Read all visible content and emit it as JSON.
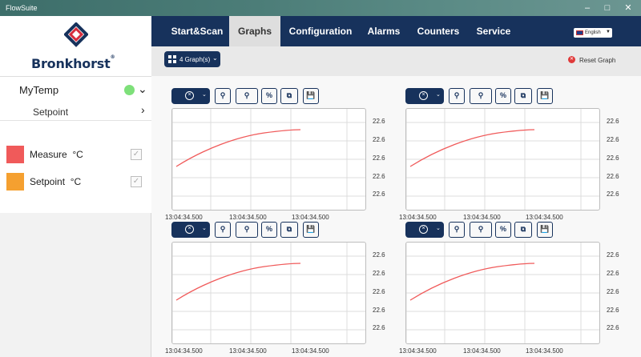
{
  "window": {
    "title": "FlowSuite"
  },
  "logo": {
    "text": "Bronkhorst",
    "mark": "®"
  },
  "device": {
    "name": "MyTemp",
    "status_color": "#7ee07a",
    "sub_item": "Setpoint",
    "legend": [
      {
        "label": "Measure",
        "unit": "°C",
        "color": "#f05a5a"
      },
      {
        "label": "Setpoint",
        "unit": "°C",
        "color": "#f5a030"
      }
    ]
  },
  "nav": {
    "tabs": [
      {
        "label": "Start&Scan",
        "active": false
      },
      {
        "label": "Graphs",
        "active": true
      },
      {
        "label": "Configuration",
        "active": false
      },
      {
        "label": "Alarms",
        "active": false
      },
      {
        "label": "Counters",
        "active": false
      },
      {
        "label": "Service",
        "active": false
      }
    ],
    "language": "English"
  },
  "toolbar": {
    "graph_count": "4 Graph(s)",
    "reset_label": "Reset Graph"
  },
  "graph_tools": [
    "zoom-reset-icon",
    "zoom-icon",
    "zoom-y-icon",
    "percent-icon",
    "fit-window-icon",
    "save-icon"
  ],
  "graphs": [
    {
      "y_ticks": [
        "22.6",
        "22.6",
        "22.6",
        "22.6",
        "22.6"
      ],
      "x_ticks": [
        "13:04:34.500",
        "13:04:34.500",
        "13:04:34.500"
      ]
    },
    {
      "y_ticks": [
        "22.6",
        "22.6",
        "22.6",
        "22.6",
        "22.6"
      ],
      "x_ticks": [
        "13:04:34.500",
        "13:04:34.500",
        "13:04:34.500"
      ]
    },
    {
      "y_ticks": [
        "22.6",
        "22.6",
        "22.6",
        "22.6",
        "22.6"
      ],
      "x_ticks": [
        "13:04:34.500",
        "13:04:34.500",
        "13:04:34.500"
      ]
    },
    {
      "y_ticks": [
        "22.6",
        "22.6",
        "22.6",
        "22.6",
        "22.6"
      ],
      "x_ticks": [
        "13:04:34.500",
        "13:04:34.500",
        "13:04:34.500"
      ]
    }
  ],
  "colors": {
    "accent": "#17325c",
    "curve": "#f05a5a"
  }
}
